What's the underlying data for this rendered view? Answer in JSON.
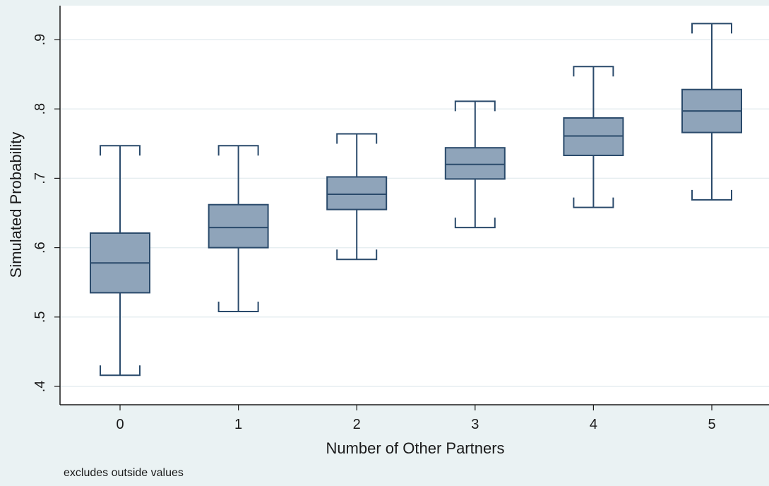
{
  "chart_data": {
    "type": "box",
    "xlabel": "Number of Other Partners",
    "ylabel": "Simulated Probability",
    "note": "excludes outside values",
    "categories": [
      "0",
      "1",
      "2",
      "3",
      "4",
      "5"
    ],
    "yticks": [
      ".4",
      ".5",
      ".6",
      ".7",
      ".8",
      ".9"
    ],
    "ylim": [
      0.39,
      0.95
    ],
    "grid": true,
    "boxes": [
      {
        "category": "0",
        "whisker_low": 0.416,
        "q1": 0.535,
        "median": 0.578,
        "q3": 0.621,
        "whisker_high": 0.747
      },
      {
        "category": "1",
        "whisker_low": 0.508,
        "q1": 0.6,
        "median": 0.629,
        "q3": 0.662,
        "whisker_high": 0.747
      },
      {
        "category": "2",
        "whisker_low": 0.583,
        "q1": 0.655,
        "median": 0.677,
        "q3": 0.702,
        "whisker_high": 0.764
      },
      {
        "category": "3",
        "whisker_low": 0.629,
        "q1": 0.699,
        "median": 0.72,
        "q3": 0.744,
        "whisker_high": 0.811
      },
      {
        "category": "4",
        "whisker_low": 0.658,
        "q1": 0.733,
        "median": 0.761,
        "q3": 0.787,
        "whisker_high": 0.861
      },
      {
        "category": "5",
        "whisker_low": 0.669,
        "q1": 0.766,
        "median": 0.797,
        "q3": 0.828,
        "whisker_high": 0.923
      }
    ],
    "colors": {
      "box_fill": "#8fa4ba",
      "box_stroke": "#2a4a6b",
      "grid": "#e6eef0",
      "plot_bg": "#ffffff",
      "page_bg": "#eaf2f3",
      "axis": "#1a1a1a"
    }
  }
}
